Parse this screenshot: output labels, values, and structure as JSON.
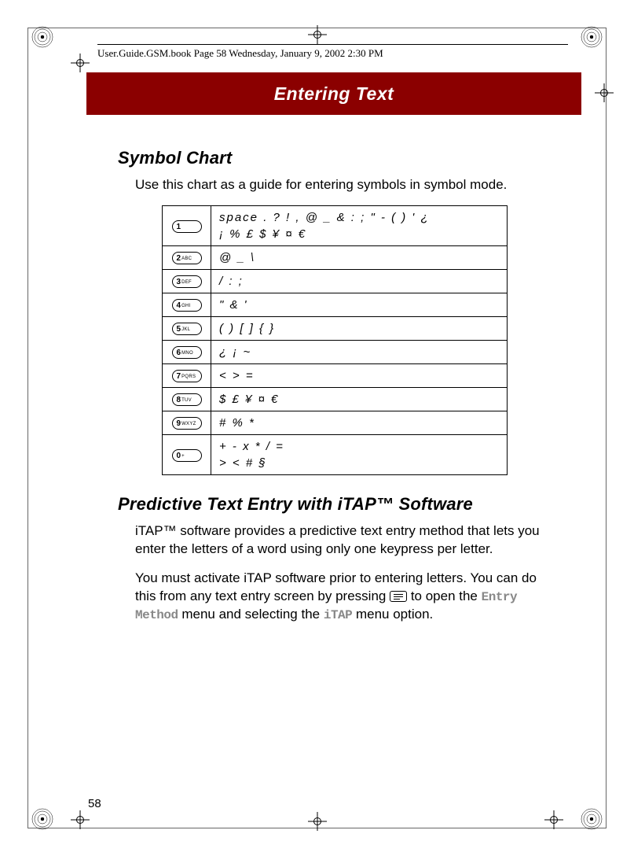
{
  "header": {
    "text": "User.Guide.GSM.book  Page 58  Wednesday, January 9, 2002  2:30 PM"
  },
  "chapter": {
    "title": "Entering Text",
    "banner_color": "#8b0000",
    "title_color": "#ffffff"
  },
  "section1": {
    "heading": "Symbol Chart",
    "intro": "Use this chart as a guide for entering symbols in symbol mode."
  },
  "symbol_table": {
    "border_color": "#000000",
    "rows": [
      {
        "key_num": "1",
        "key_label": "",
        "symbols": "space . ? ! , @ _ & : ; \" - ( ) ' ¿\n¡ % £ $ ¥ ¤ €"
      },
      {
        "key_num": "2",
        "key_label": "ABC",
        "symbols": "@ _ \\"
      },
      {
        "key_num": "3",
        "key_label": "DEF",
        "symbols": "/ : ;"
      },
      {
        "key_num": "4",
        "key_label": "GHI",
        "symbols": "\" & '"
      },
      {
        "key_num": "5",
        "key_label": "JKL",
        "symbols": "( ) [ ] { }"
      },
      {
        "key_num": "6",
        "key_label": "MNO",
        "symbols": "¿ ¡ ~"
      },
      {
        "key_num": "7",
        "key_label": "PQRS",
        "symbols": "< > ="
      },
      {
        "key_num": "8",
        "key_label": "TUV",
        "symbols": "$ £ ¥ ¤ €"
      },
      {
        "key_num": "9",
        "key_label": "WXYZ",
        "symbols": "# % *"
      },
      {
        "key_num": "0",
        "key_label": "+",
        "symbols": "+ - x * / =\n> < # §"
      }
    ]
  },
  "section2": {
    "heading": "Predictive Text Entry with iTAP™ Software",
    "para1": "iTAP™ software provides a predictive text entry method that lets you enter the letters of a word using only one keypress per letter.",
    "para2_a": "You must activate iTAP software prior to entering letters. You can do this from any text entry screen by pressing ",
    "para2_b": " to open the ",
    "para2_c": " menu and selecting the ",
    "para2_d": " menu option.",
    "ui_entry_method": "Entry Method",
    "ui_itap": "iTAP"
  },
  "page_number": "58",
  "colors": {
    "text": "#000000",
    "ui_label_gray": "#888888",
    "background": "#ffffff"
  }
}
